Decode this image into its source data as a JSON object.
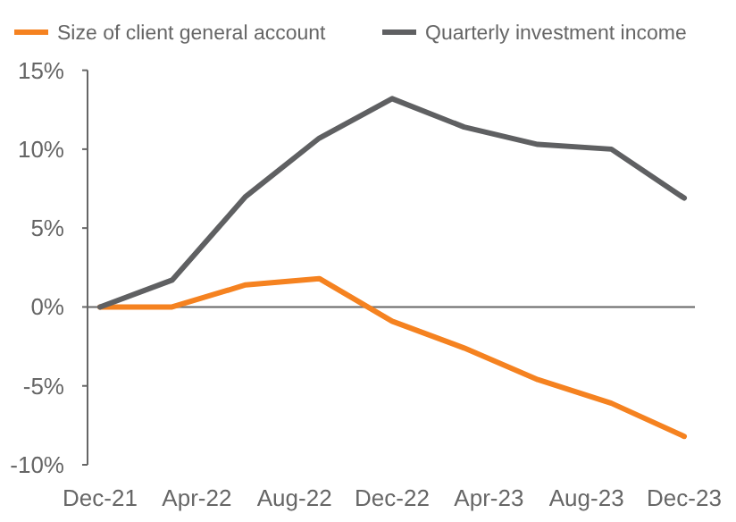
{
  "chart_data": {
    "type": "line",
    "legend": "top left",
    "ref_lines": [
      {
        "axis": "y",
        "value": 0,
        "color": "#666666"
      }
    ],
    "x": [
      "2021-12",
      "2022-03",
      "2022-06",
      "2022-09",
      "2022-12",
      "2023-03",
      "2023-06",
      "2023-09",
      "2023-12"
    ],
    "xlim": [
      "2021-12",
      "2023-12"
    ],
    "xticks": [
      {
        "value": "2021-12",
        "label": "Dec-21"
      },
      {
        "value": "2022-04",
        "label": "Apr-22"
      },
      {
        "value": "2022-08",
        "label": "Aug-22"
      },
      {
        "value": "2022-12",
        "label": "Dec-22"
      },
      {
        "value": "2023-04",
        "label": "Apr-23"
      },
      {
        "value": "2023-08",
        "label": "Aug-23"
      },
      {
        "value": "2023-12",
        "label": "Dec-23"
      }
    ],
    "ylim": [
      -10,
      15
    ],
    "yticks": [
      {
        "value": -10,
        "label": "-10%"
      },
      {
        "value": -5,
        "label": "-5%"
      },
      {
        "value": 0,
        "label": "0%"
      },
      {
        "value": 5,
        "label": "5%"
      },
      {
        "value": 10,
        "label": "10%"
      },
      {
        "value": 15,
        "label": "15%"
      }
    ],
    "series": [
      {
        "name": "Size of client general account",
        "color": "#f58220",
        "values": [
          0,
          0,
          1.4,
          1.8,
          -0.9,
          -2.6,
          -4.6,
          -6.1,
          -8.2
        ]
      },
      {
        "name": "Quarterly investment income",
        "color": "#5f6062",
        "values": [
          0,
          1.7,
          7.0,
          10.7,
          13.2,
          11.4,
          10.3,
          10.0,
          6.9
        ]
      }
    ]
  }
}
